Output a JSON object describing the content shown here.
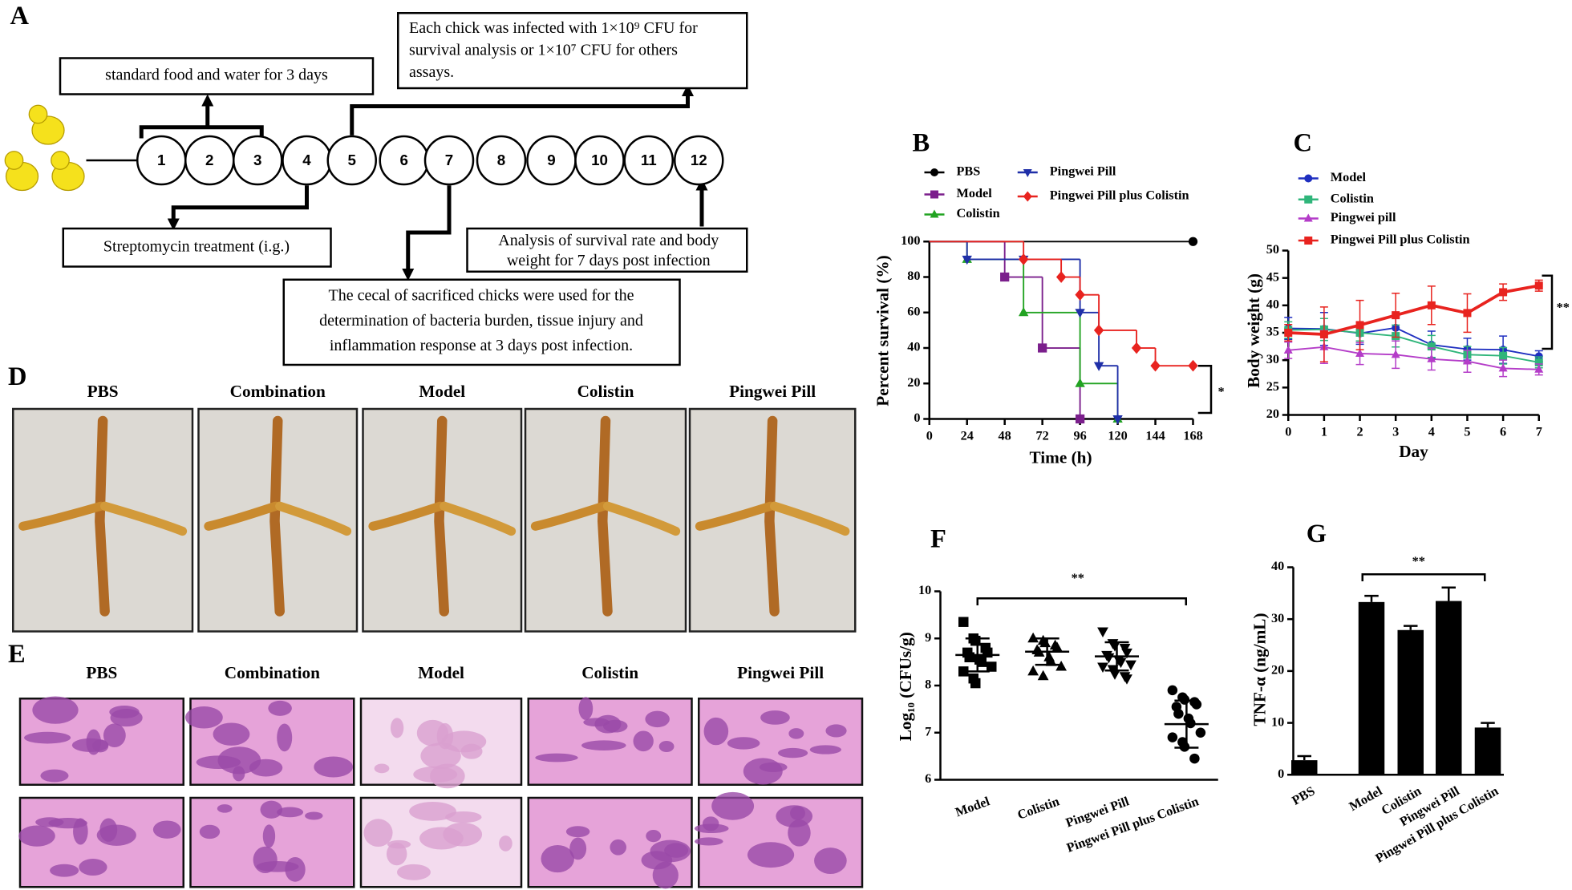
{
  "panel_a": {
    "label": "A",
    "steps": [
      "1",
      "2",
      "3",
      "4",
      "5",
      "6",
      "7",
      "8",
      "9",
      "10",
      "11",
      "12"
    ],
    "food_box": "standard food and water for 3 days",
    "infection_box": [
      "Each chick was infected with 1×10⁹ CFU for",
      "survival analysis or 1×10⁷ CFU  for others",
      "assays."
    ],
    "streptomycin_box": "Streptomycin treatment (i.g.)",
    "analysis_box": [
      "Analysis of survival rate  and body",
      "weight for 7 days  post infection"
    ],
    "cecal_box": [
      "The cecal  of sacrificed chicks  were used for the",
      "determination of bacteria burden, tissue injury and",
      "inflammation response at 3 days post infection."
    ]
  },
  "panel_d": {
    "label": "D",
    "images": [
      "PBS",
      "Combination",
      "Model",
      "Colistin",
      "Pingwei Pill"
    ]
  },
  "panel_e": {
    "label": "E",
    "images": [
      "PBS",
      "Combination",
      "Model",
      "Colistin",
      "Pingwei Pill"
    ]
  },
  "chart_data": [
    {
      "type": "survival",
      "label": "B",
      "x_label": "Time (h)",
      "y_label": "Percent survival (%)",
      "xlim": [
        0,
        168
      ],
      "xticks": [
        0,
        24,
        48,
        72,
        96,
        120,
        144,
        168
      ],
      "ylim": [
        0,
        100
      ],
      "yticks": [
        0,
        20,
        40,
        60,
        80,
        100
      ],
      "annotation": "*",
      "series": [
        {
          "name": "PBS",
          "color": "#000000",
          "marker": "circle",
          "x": [
            0,
            168
          ],
          "values": [
            100,
            100
          ]
        },
        {
          "name": "Model",
          "color": "#7b1f8c",
          "marker": "square",
          "x": [
            0,
            48,
            72,
            96
          ],
          "values": [
            100,
            80,
            40,
            0
          ]
        },
        {
          "name": "Colistin",
          "color": "#22a322",
          "marker": "triangle",
          "x": [
            0,
            24,
            60,
            96,
            120
          ],
          "values": [
            100,
            90,
            60,
            20,
            0
          ]
        },
        {
          "name": "Pingwei Pill",
          "color": "#1f2fa8",
          "marker": "triangle-down",
          "x": [
            0,
            24,
            60,
            96,
            108,
            120
          ],
          "values": [
            100,
            90,
            90,
            60,
            30,
            0
          ]
        },
        {
          "name": "Pingwei Pill plus Colistin",
          "color": "#e8231f",
          "marker": "diamond",
          "x": [
            0,
            60,
            84,
            96,
            108,
            132,
            144,
            168
          ],
          "values": [
            100,
            90,
            80,
            70,
            50,
            40,
            30,
            30
          ]
        }
      ]
    },
    {
      "type": "line",
      "label": "C",
      "x_label": "Day",
      "y_label": "Body weight (g)",
      "x": [
        0,
        1,
        2,
        3,
        4,
        5,
        6,
        7
      ],
      "xlim": [
        0,
        7
      ],
      "xticks": [
        0,
        1,
        2,
        3,
        4,
        5,
        6,
        7
      ],
      "ylim": [
        20,
        50
      ],
      "yticks": [
        20,
        25,
        30,
        35,
        40,
        45,
        50
      ],
      "annotation": "**",
      "series": [
        {
          "name": "Model",
          "color": "#1f2fc0",
          "marker": "circle",
          "values": [
            35.8,
            35.7,
            34.9,
            35.9,
            32.8,
            32.0,
            31.9,
            30.7
          ],
          "errors": [
            2.0,
            3.0,
            2.0,
            2.0,
            2.5,
            2.0,
            2.5,
            1.0
          ]
        },
        {
          "name": "Colistin",
          "color": "#2fb57a",
          "marker": "square",
          "values": [
            35.5,
            35.6,
            35.0,
            34.4,
            32.5,
            31.0,
            30.8,
            29.6
          ],
          "errors": [
            1.5,
            2.0,
            1.5,
            2.0,
            2.0,
            1.5,
            1.5,
            1.0
          ]
        },
        {
          "name": "Pingwei pill",
          "color": "#b43cc8",
          "marker": "triangle",
          "values": [
            31.8,
            32.4,
            31.2,
            31.0,
            30.2,
            29.8,
            28.5,
            28.3
          ],
          "errors": [
            1.5,
            3.0,
            2.0,
            2.5,
            2.0,
            2.0,
            1.5,
            1.0
          ]
        },
        {
          "name": "Pingwei Pill plus Colistin",
          "color": "#e8231f",
          "marker": "square",
          "values": [
            35.0,
            34.7,
            36.4,
            38.2,
            40.0,
            38.6,
            42.4,
            43.6
          ],
          "errors": [
            1.5,
            5.0,
            4.5,
            4.0,
            3.5,
            3.5,
            1.5,
            1.0
          ]
        }
      ]
    },
    {
      "type": "dot",
      "label": "F",
      "y_label": "Log₁₀ (CFUs/g)",
      "categories": [
        "Model",
        "Colistin",
        "Pingwei Pill",
        "Pingwei Pill plus Colistin"
      ],
      "markers": [
        "square",
        "triangle",
        "triangle-down",
        "circle"
      ],
      "points": [
        [
          9.35,
          9.0,
          8.95,
          8.8,
          8.7,
          8.7,
          8.6,
          8.55,
          8.5,
          8.4,
          8.3,
          8.15,
          8.05
        ],
        [
          9.0,
          8.95,
          8.9,
          8.85,
          8.8,
          8.75,
          8.7,
          8.6,
          8.5,
          8.4,
          8.3,
          8.2
        ],
        [
          9.15,
          8.9,
          8.85,
          8.8,
          8.7,
          8.65,
          8.6,
          8.55,
          8.5,
          8.45,
          8.4,
          8.35,
          8.25,
          8.2,
          8.15
        ],
        [
          7.9,
          7.75,
          7.7,
          7.65,
          7.6,
          7.55,
          7.4,
          7.3,
          7.2,
          7.0,
          6.9,
          6.8,
          6.7,
          6.45
        ]
      ],
      "means": [
        8.65,
        8.72,
        8.62,
        7.18
      ],
      "sd": [
        0.35,
        0.28,
        0.3,
        0.5
      ],
      "ylim": [
        6,
        10
      ],
      "yticks": [
        6,
        7,
        8,
        9,
        10
      ],
      "annotation": "**",
      "color": "#000000"
    },
    {
      "type": "bar",
      "label": "G",
      "y_label": "TNF-α (ng/mL)",
      "categories": [
        "PBS",
        "Model",
        "Colistin",
        "Pingwei Pill",
        "Pingwei Pill plus Colistin"
      ],
      "values": [
        2.8,
        33.3,
        27.9,
        33.5,
        9.1
      ],
      "errors": [
        0.8,
        1.2,
        0.8,
        2.6,
        0.9
      ],
      "ylim": [
        0,
        40
      ],
      "yticks": [
        0,
        10,
        20,
        30,
        40
      ],
      "annotation": "**",
      "color": "#000000"
    }
  ]
}
